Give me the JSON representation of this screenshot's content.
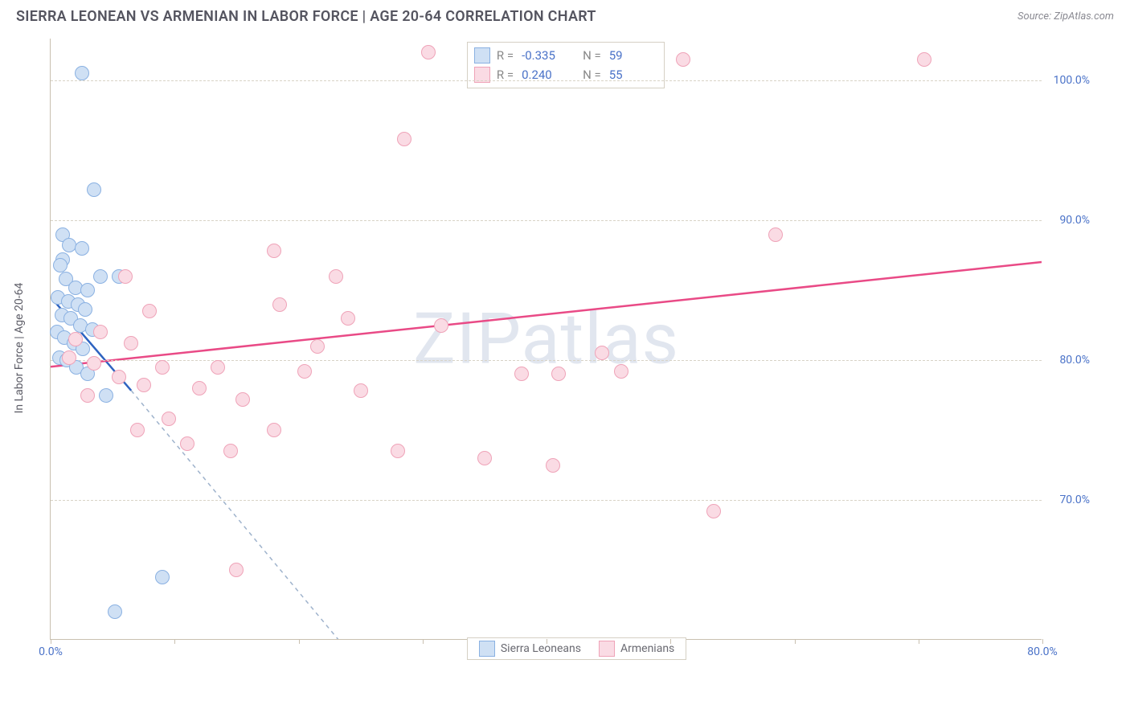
{
  "header": {
    "title": "SIERRA LEONEAN VS ARMENIAN IN LABOR FORCE | AGE 20-64 CORRELATION CHART",
    "source": "Source: ZipAtlas.com"
  },
  "chart": {
    "type": "scatter",
    "y_axis_label": "In Labor Force | Age 20-64",
    "watermark": "ZIPatlas",
    "background_color": "#ffffff",
    "grid_color": "#d8d3c6",
    "axis_color": "#c9c0b0",
    "label_color": "#4a72c8",
    "title_fontsize": 18,
    "label_fontsize": 14,
    "xlim": [
      0,
      80
    ],
    "ylim": [
      60,
      103
    ],
    "x_ticks": [
      0,
      10,
      20,
      30,
      40,
      50,
      60,
      70,
      80
    ],
    "x_tick_labels": {
      "0": "0.0%",
      "80": "80.0%"
    },
    "y_ticks": [
      70,
      80,
      90,
      100
    ],
    "y_tick_labels": {
      "70": "70.0%",
      "80": "80.0%",
      "90": "90.0%",
      "100": "100.0%"
    },
    "marker_radius": 9,
    "marker_stroke_width": 1.5,
    "trend_line_width": 2.5,
    "series": [
      {
        "name": "Sierra Leoneans",
        "fill_color": "#cfe0f4",
        "stroke_color": "#8ab1e2",
        "trend_color": "#2e63c0",
        "trend_dash_color": "#9fb3cc",
        "stats": {
          "R": "-0.335",
          "N": "59"
        },
        "trend": {
          "x1": 0,
          "y1": 84.5,
          "x2": 6.5,
          "y2": 77.8,
          "extend_x": 26,
          "extend_y": 57
        },
        "points": [
          [
            2.5,
            100.5
          ],
          [
            3.5,
            92.2
          ],
          [
            1.0,
            89.0
          ],
          [
            1.5,
            88.2
          ],
          [
            2.5,
            88.0
          ],
          [
            1.0,
            87.2
          ],
          [
            4.0,
            86.0
          ],
          [
            5.5,
            86.0
          ],
          [
            0.8,
            86.8
          ],
          [
            1.2,
            85.8
          ],
          [
            2.0,
            85.2
          ],
          [
            3.0,
            85.0
          ],
          [
            0.6,
            84.5
          ],
          [
            1.4,
            84.2
          ],
          [
            2.2,
            84.0
          ],
          [
            2.8,
            83.6
          ],
          [
            0.9,
            83.2
          ],
          [
            1.6,
            83.0
          ],
          [
            2.4,
            82.5
          ],
          [
            3.4,
            82.2
          ],
          [
            0.5,
            82.0
          ],
          [
            1.1,
            81.6
          ],
          [
            1.9,
            81.2
          ],
          [
            2.6,
            80.8
          ],
          [
            0.7,
            80.2
          ],
          [
            1.3,
            80.0
          ],
          [
            2.1,
            79.5
          ],
          [
            3.0,
            79.0
          ],
          [
            4.5,
            77.5
          ],
          [
            9.0,
            64.5
          ],
          [
            5.2,
            62.0
          ]
        ]
      },
      {
        "name": "Armenians",
        "fill_color": "#fadbe4",
        "stroke_color": "#efa3b8",
        "trend_color": "#e94a86",
        "trend_dash_color": "#f2b6c9",
        "stats": {
          "R": "0.240",
          "N": "55"
        },
        "trend": {
          "x1": 0,
          "y1": 79.5,
          "x2": 80,
          "y2": 87.0
        },
        "points": [
          [
            30.5,
            102.0
          ],
          [
            51.0,
            101.5
          ],
          [
            70.5,
            101.5
          ],
          [
            28.5,
            95.8
          ],
          [
            58.5,
            89.0
          ],
          [
            18.0,
            87.8
          ],
          [
            6.0,
            86.0
          ],
          [
            23.0,
            86.0
          ],
          [
            18.5,
            84.0
          ],
          [
            8.0,
            83.5
          ],
          [
            24.0,
            83.0
          ],
          [
            31.5,
            82.5
          ],
          [
            4.0,
            82.0
          ],
          [
            2.0,
            81.5
          ],
          [
            6.5,
            81.2
          ],
          [
            21.5,
            81.0
          ],
          [
            44.5,
            80.5
          ],
          [
            1.5,
            80.2
          ],
          [
            3.5,
            79.8
          ],
          [
            9.0,
            79.5
          ],
          [
            13.5,
            79.5
          ],
          [
            20.5,
            79.2
          ],
          [
            5.5,
            78.8
          ],
          [
            38.0,
            79.0
          ],
          [
            41.0,
            79.0
          ],
          [
            46.0,
            79.2
          ],
          [
            7.5,
            78.2
          ],
          [
            12.0,
            78.0
          ],
          [
            25.0,
            77.8
          ],
          [
            3.0,
            77.5
          ],
          [
            15.5,
            77.2
          ],
          [
            9.5,
            75.8
          ],
          [
            7.0,
            75.0
          ],
          [
            18.0,
            75.0
          ],
          [
            11.0,
            74.0
          ],
          [
            14.5,
            73.5
          ],
          [
            28.0,
            73.5
          ],
          [
            35.0,
            73.0
          ],
          [
            40.5,
            72.5
          ],
          [
            53.5,
            69.2
          ],
          [
            15.0,
            65.0
          ]
        ]
      }
    ],
    "legend": {
      "position": "bottom"
    }
  }
}
